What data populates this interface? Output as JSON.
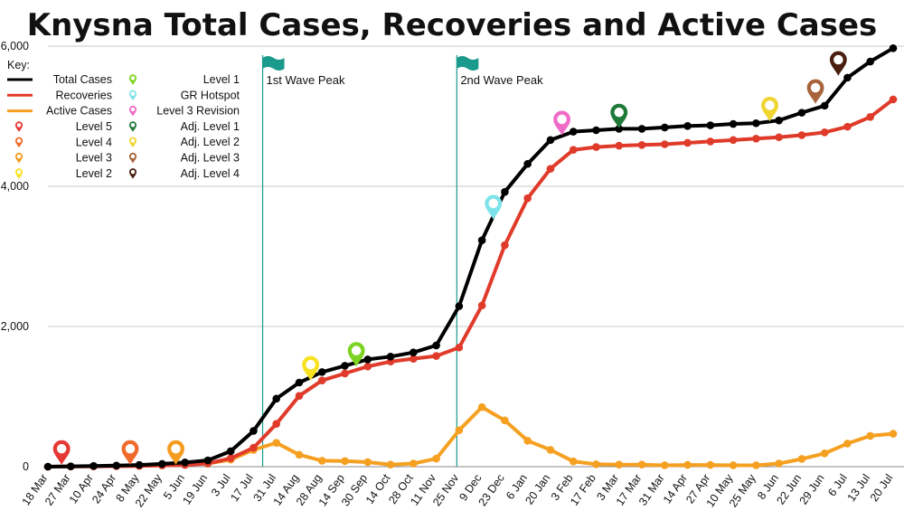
{
  "chart_data": {
    "type": "line",
    "title": "Knysna Total Cases, Recoveries and Active Cases",
    "x": [
      "18 Mar",
      "27 Mar",
      "10 Apr",
      "24 Apr",
      "8 May",
      "22 May",
      "5 Jun",
      "19 Jun",
      "3 Jul",
      "17 Jul",
      "31 Jul",
      "14 Aug",
      "28 Aug",
      "14 Sep",
      "30 Sep",
      "14 Oct",
      "28 Oct",
      "11 Nov",
      "25 Nov",
      "9 Dec",
      "23 Dec",
      "6 Jan",
      "20 Jan",
      "3 Feb",
      "17 Feb",
      "3 Mar",
      "17 Mar",
      "31 Mar",
      "14 Apr",
      "27 Apr",
      "10 May",
      "25 May",
      "8 Jun",
      "22 Jun",
      "29 Jun",
      "6 Jul",
      "13 Jul",
      "20 Jul"
    ],
    "ylim": [
      0,
      6000
    ],
    "yticks": [
      0,
      2000,
      4000,
      6000
    ],
    "ytick_labels": [
      "0",
      "2,000",
      "4,000",
      "6,000"
    ],
    "grid": true,
    "series": [
      {
        "name": "Total Cases",
        "color": "#000000",
        "values": [
          0,
          5,
          10,
          15,
          25,
          40,
          60,
          90,
          220,
          510,
          970,
          1200,
          1350,
          1440,
          1530,
          1570,
          1630,
          1730,
          2290,
          3230,
          3920,
          4320,
          4660,
          4780,
          4800,
          4820,
          4820,
          4840,
          4860,
          4870,
          4890,
          4900,
          4940,
          5050,
          5150,
          5550,
          5780,
          5970
        ]
      },
      {
        "name": "Recoveries",
        "color": "#e03b2a",
        "values": [
          0,
          3,
          5,
          8,
          12,
          18,
          25,
          45,
          120,
          270,
          610,
          1010,
          1230,
          1330,
          1430,
          1500,
          1540,
          1580,
          1700,
          2300,
          3160,
          3830,
          4250,
          4520,
          4560,
          4580,
          4590,
          4600,
          4620,
          4640,
          4660,
          4680,
          4700,
          4730,
          4770,
          4850,
          4990,
          5240
        ]
      },
      {
        "name": "Active Cases",
        "color": "#f5a020",
        "values": [
          0,
          3,
          5,
          8,
          12,
          20,
          30,
          45,
          100,
          240,
          340,
          170,
          85,
          80,
          65,
          30,
          45,
          115,
          520,
          850,
          660,
          370,
          240,
          75,
          35,
          30,
          30,
          20,
          25,
          25,
          20,
          20,
          45,
          110,
          190,
          330,
          440,
          470
        ]
      }
    ],
    "phases": [
      {
        "name": "Level 5",
        "color": "#e53935",
        "x_index": 0.6,
        "y": 0
      },
      {
        "name": "Level 4",
        "color": "#f06a2b",
        "x_index": 3.6,
        "y": 0
      },
      {
        "name": "Level 3",
        "color": "#f39c1f",
        "x_index": 5.6,
        "y": 0
      },
      {
        "name": "Level 2",
        "color": "#f8e11e",
        "x_index": 11.5,
        "y": 1200
      },
      {
        "name": "Level 1",
        "color": "#7dd321",
        "x_index": 13.5,
        "y": 1400
      },
      {
        "name": "GR Hotspot",
        "color": "#7ee3e8",
        "x_index": 19.5,
        "y": 3500
      },
      {
        "name": "Level 3 Revision",
        "color": "#f06ac8",
        "x_index": 22.5,
        "y": 4700
      },
      {
        "name": "Adj. Level 1",
        "color": "#1f7a3a",
        "x_index": 25.0,
        "y": 4800
      },
      {
        "name": "Adj. Level 2",
        "color": "#f0d531",
        "x_index": 31.6,
        "y": 4900
      },
      {
        "name": "Adj. Level 3",
        "color": "#a8643c",
        "x_index": 33.6,
        "y": 5150
      },
      {
        "name": "Adj. Level 4",
        "color": "#4a1f10",
        "x_index": 34.6,
        "y": 5550
      }
    ],
    "legend_title": "Key:",
    "legend_placement": "top-left",
    "wave_peaks": [
      {
        "label": "1st Wave Peak",
        "x_index": 9.4
      },
      {
        "label": "2nd Wave Peak",
        "x_index": 17.9
      }
    ],
    "wave_flag_color": "#1a9a8c"
  }
}
